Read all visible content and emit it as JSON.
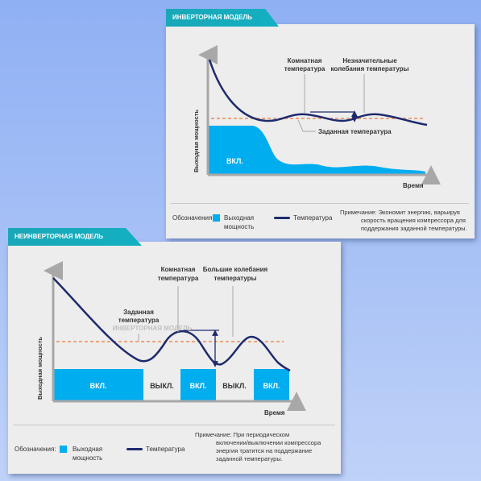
{
  "colors": {
    "power": "#00adef",
    "curve": "#1f2b6e",
    "setpoint": "#f07838",
    "axis": "#a8a8a8",
    "tab": "#13b0c2"
  },
  "inverter": {
    "tab": "ИНВЕРТОРНАЯ МОДЕЛЬ",
    "y_axis": "Выходная мощность",
    "x_axis": "Время",
    "power_label": "ВКЛ.",
    "annotations": {
      "room": [
        "Комнатная",
        "температура"
      ],
      "small": [
        "Незначительные",
        "колебания температуры"
      ],
      "setpoint": "Заданная температура"
    },
    "legend": {
      "title": "Обозначения:",
      "power": [
        "Выходная",
        "мощность"
      ],
      "temp": "Температура"
    },
    "note": [
      "Примечание: Экономит энергию, варьируя",
      "скорость вращения компрессора для",
      "поддержания заданной температуры."
    ]
  },
  "noninverter": {
    "tab": "НЕИНВЕРТОРНАЯ МОДЕЛЬ",
    "y_axis": "Выходная мощность",
    "x_axis": "Время",
    "blocks": [
      "ВКЛ.",
      "ВЫКЛ.",
      "ВКЛ.",
      "ВЫКЛ.",
      "ВКЛ."
    ],
    "annotations": {
      "room": [
        "Комнатная",
        "температура"
      ],
      "large": [
        "Большие колебания",
        "температуры"
      ],
      "setpoint": [
        "Заданная",
        "температура"
      ],
      "watermark": "ИНВЕРТОРНАЯ МОДЕЛЬ"
    },
    "legend": {
      "title": "Обозначения:",
      "power": [
        "Выходная",
        "мощность"
      ],
      "temp": "Температура"
    },
    "note": [
      "Примечание: При периодическом",
      "включении/выключении компрессора",
      "энергия тратится на поддержание",
      "заданной температуры."
    ]
  }
}
